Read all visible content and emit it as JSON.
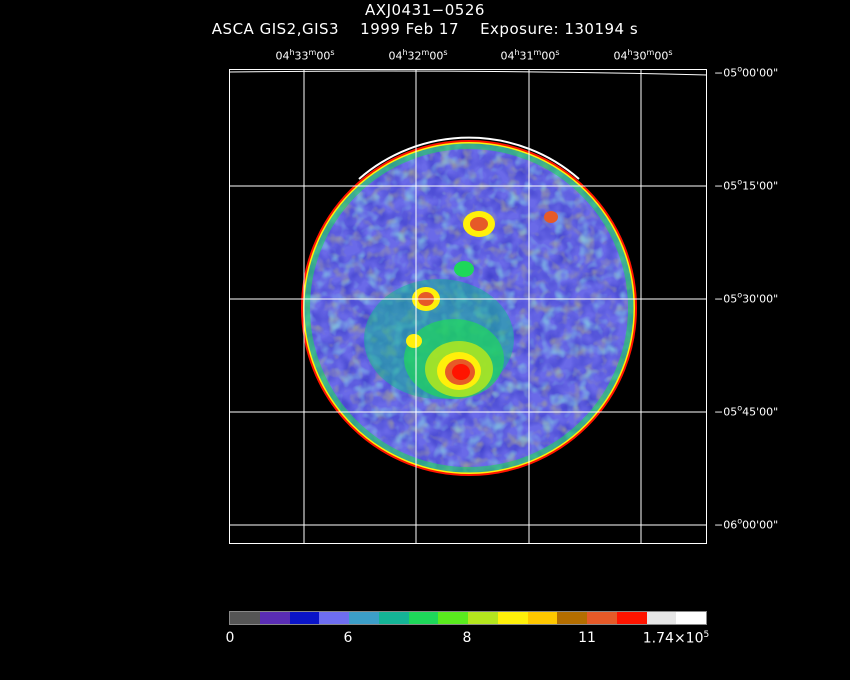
{
  "header": {
    "title": "AXJ0431−0526",
    "subtitle": "ASCA GIS2,GIS3    1999 Feb 17    Exposure: 130194 s"
  },
  "axes": {
    "ra_ticks": [
      "04h33m00s",
      "04h32m00s",
      "04h31m00s",
      "04h30m00s"
    ],
    "dec_ticks": [
      "−05°00'00\"",
      "−05°15'00\"",
      "−05°30'00\"",
      "−05°45'00\"",
      "−06°00'00\""
    ]
  },
  "colorbar": {
    "colors": [
      "#555555",
      "#5a2db4",
      "#0a14c8",
      "#6e6ef0",
      "#3c9ec8",
      "#14b496",
      "#1ed75a",
      "#5aeb1e",
      "#b4e61e",
      "#fff00a",
      "#ffc800",
      "#b46e00",
      "#e65a28",
      "#ff1400",
      "#e6e6e6",
      "#ffffff"
    ],
    "labels": [
      "0",
      "6",
      "8",
      "11",
      "1.74×10^5"
    ]
  }
}
